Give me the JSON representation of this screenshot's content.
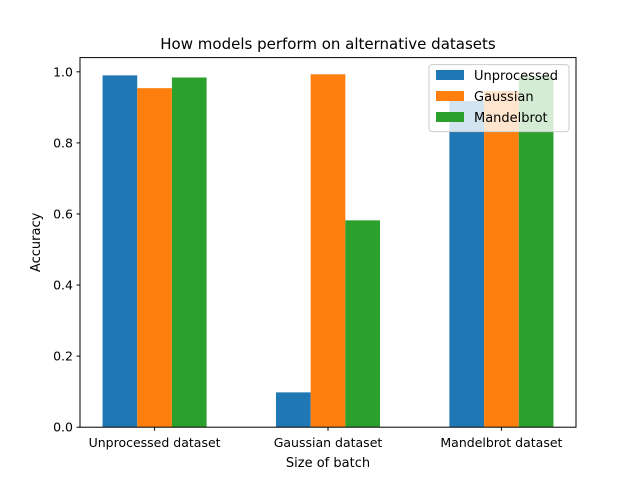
{
  "chart_data": {
    "type": "bar",
    "title": "How models perform on alternative datasets",
    "xlabel": "Size of batch",
    "ylabel": "Accuracy",
    "categories": [
      "Unprocessed dataset",
      "Gaussian dataset",
      "Mandelbrot dataset"
    ],
    "series": [
      {
        "name": "Unprocessed",
        "color": "#1f77b4",
        "values": [
          0.99,
          0.098,
          0.918
        ]
      },
      {
        "name": "Gaussian",
        "color": "#ff7f0e",
        "values": [
          0.954,
          0.993,
          0.946
        ]
      },
      {
        "name": "Mandelbrot",
        "color": "#2ca02c",
        "values": [
          0.984,
          0.582,
          0.987
        ]
      }
    ],
    "ylim": [
      0,
      1.04
    ],
    "yticks": [
      0.0,
      0.2,
      0.4,
      0.6,
      0.8,
      1.0
    ],
    "ytick_labels": [
      "0.0",
      "0.2",
      "0.4",
      "0.6",
      "0.8",
      "1.0"
    ],
    "legend_position": "top-right",
    "grid": false
  }
}
